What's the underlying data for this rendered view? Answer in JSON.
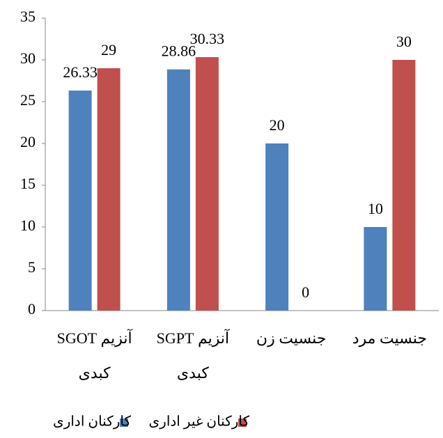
{
  "chart_data": {
    "type": "bar",
    "categories": [
      [
        "آنزیم SGOT",
        "کبدی"
      ],
      [
        "آنزیم SGPT",
        "کبدی"
      ],
      [
        "جنسیت زن"
      ],
      [
        "جنسیت مرد"
      ]
    ],
    "series": [
      {
        "name": "کارکنان اداری",
        "color": "#4f81bd",
        "values": [
          26.33,
          28.86,
          20,
          10
        ]
      },
      {
        "name": "کارکنان غیر اداری",
        "color": "#c0504d",
        "values": [
          29,
          30.33,
          0,
          30
        ]
      }
    ],
    "ylim": [
      0,
      35
    ],
    "yticks": [
      0,
      5,
      10,
      15,
      20,
      25,
      30,
      35
    ],
    "grid": false
  }
}
